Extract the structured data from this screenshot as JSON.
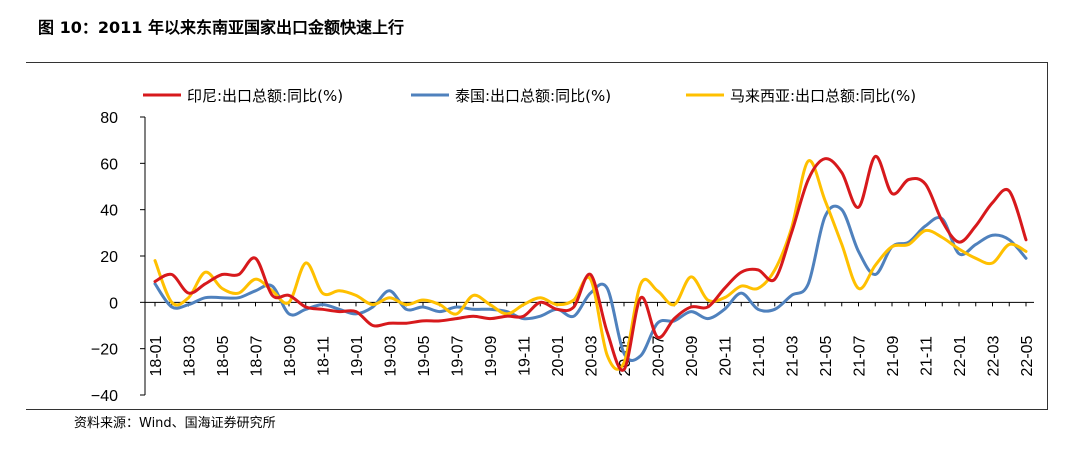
{
  "figure": {
    "title": "图 10：2011 年以来东南亚国家出口金额快速上行",
    "source": "资料来源：Wind、国海证券研究所"
  },
  "colors": {
    "indonesia": "#d7191c",
    "thailand": "#4f81bd",
    "malaysia": "#ffc000"
  },
  "chart_data": {
    "type": "line",
    "title": "",
    "xlabel": "",
    "ylabel": "",
    "ylim": [
      -40,
      80
    ],
    "yticks": [
      -40,
      -20,
      0,
      20,
      40,
      60,
      80
    ],
    "grid": false,
    "legend_position": "top",
    "x_tick_labels": [
      "18-01",
      "18-03",
      "18-05",
      "18-07",
      "18-09",
      "18-11",
      "19-01",
      "19-03",
      "19-05",
      "19-07",
      "19-09",
      "19-11",
      "20-01",
      "20-03",
      "20-05",
      "20-07",
      "20-09",
      "20-11",
      "21-01",
      "21-03",
      "21-05",
      "21-07",
      "21-09",
      "21-11",
      "22-01",
      "22-03",
      "22-05"
    ],
    "x": [
      "18-01",
      "18-02",
      "18-03",
      "18-04",
      "18-05",
      "18-06",
      "18-07",
      "18-08",
      "18-09",
      "18-10",
      "18-11",
      "18-12",
      "19-01",
      "19-02",
      "19-03",
      "19-04",
      "19-05",
      "19-06",
      "19-07",
      "19-08",
      "19-09",
      "19-10",
      "19-11",
      "19-12",
      "20-01",
      "20-02",
      "20-03",
      "20-04",
      "20-05",
      "20-06",
      "20-07",
      "20-08",
      "20-09",
      "20-10",
      "20-11",
      "20-12",
      "21-01",
      "21-02",
      "21-03",
      "21-04",
      "21-05",
      "21-06",
      "21-07",
      "21-08",
      "21-09",
      "21-10",
      "21-11",
      "21-12",
      "22-01",
      "22-02",
      "22-03",
      "22-04",
      "22-05"
    ],
    "series": [
      {
        "name": "印尼:出口总额:同比(%)",
        "color_key": "indonesia",
        "values": [
          9,
          12,
          4,
          8,
          12,
          12,
          19,
          3,
          3,
          -2,
          -3,
          -4,
          -4,
          -10,
          -9,
          -9,
          -8,
          -8,
          -7,
          -6,
          -7,
          -6,
          -6,
          0,
          -3,
          -2,
          12,
          -13,
          -29,
          2,
          -15,
          -7,
          -2,
          -2,
          6,
          13,
          14,
          10,
          30,
          53,
          62,
          56,
          41,
          63,
          47,
          53,
          51,
          35,
          26,
          33,
          43,
          48,
          27
        ]
      },
      {
        "name": "泰国:出口总额:同比(%)",
        "color_key": "thailand",
        "values": [
          8,
          -2,
          -1,
          2,
          2,
          2,
          5,
          7,
          -5,
          -3,
          -1,
          -3,
          -5,
          -2,
          5,
          -3,
          -2,
          -4,
          -2,
          -3,
          -3,
          -4,
          -7,
          -6,
          -3,
          -6,
          4,
          6,
          -22,
          -23,
          -9,
          -8,
          -4,
          -7,
          -3,
          4,
          -3,
          -3,
          3,
          8,
          37,
          40,
          22,
          12,
          24,
          26,
          33,
          36,
          21,
          25,
          29,
          27,
          19
        ]
      },
      {
        "name": "马来西亚:出口总额:同比(%)",
        "color_key": "malaysia",
        "values": [
          18,
          0,
          2,
          13,
          6,
          4,
          10,
          5,
          0,
          17,
          4,
          5,
          3,
          -1,
          2,
          -1,
          1,
          -1,
          -5,
          3,
          -1,
          -5,
          -1,
          2,
          -1,
          1,
          10,
          -23,
          -26,
          8,
          5,
          -1,
          11,
          1,
          2,
          7,
          6,
          14,
          32,
          61,
          44,
          25,
          6,
          16,
          24,
          25,
          31,
          28,
          23,
          19,
          17,
          25,
          22
        ]
      }
    ]
  }
}
